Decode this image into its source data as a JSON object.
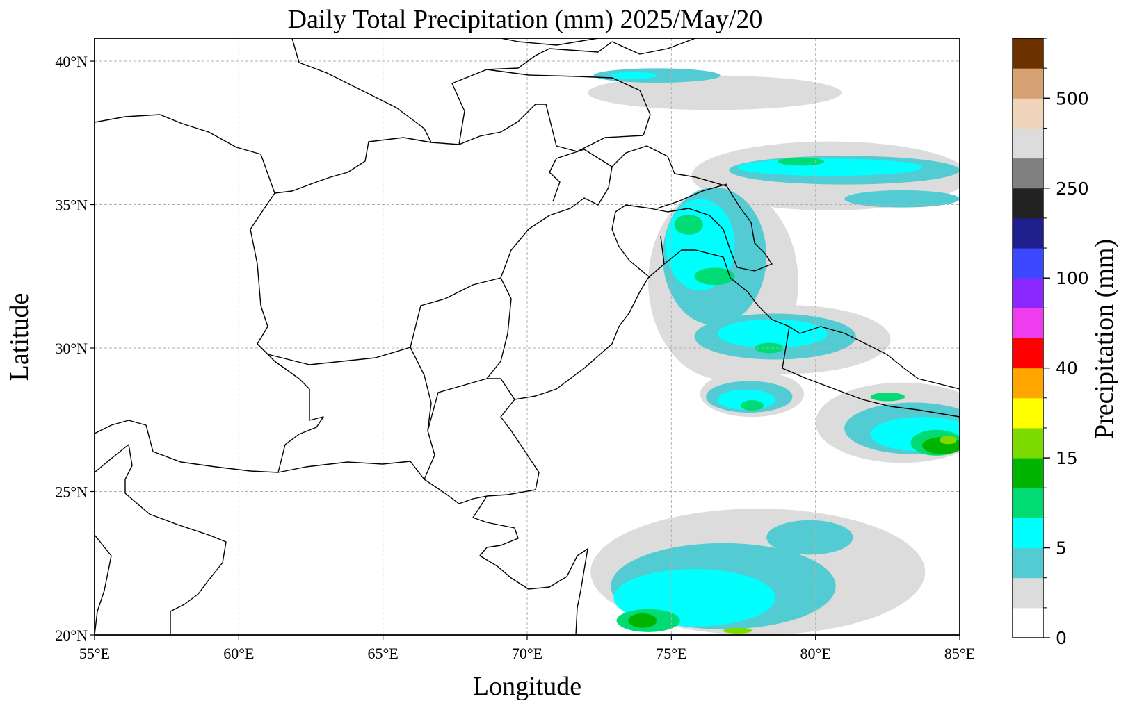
{
  "title": "Daily Total Precipitation (mm)  2025/May/20",
  "xlabel": "Longitude",
  "ylabel": "Latitude",
  "colorbar_label": "Precipitation (mm)",
  "lon_range": [
    55,
    85
  ],
  "lat_range": [
    20,
    40.8
  ],
  "x_ticks": [
    {
      "value": 55,
      "label": "55°E"
    },
    {
      "value": 60,
      "label": "60°E"
    },
    {
      "value": 65,
      "label": "65°E"
    },
    {
      "value": 70,
      "label": "70°E"
    },
    {
      "value": 75,
      "label": "75°E"
    },
    {
      "value": 80,
      "label": "80°E"
    },
    {
      "value": 85,
      "label": "85°E"
    }
  ],
  "y_ticks": [
    {
      "value": 20,
      "label": "20°N"
    },
    {
      "value": 25,
      "label": "25°N"
    },
    {
      "value": 30,
      "label": "30°N"
    },
    {
      "value": 35,
      "label": "35°N"
    },
    {
      "value": 40,
      "label": "40°N"
    }
  ],
  "colorbar_colors": [
    "#ffffff",
    "#dcdcdc",
    "#52ccd2",
    "#00ffff",
    "#00db74",
    "#00b400",
    "#7ddb00",
    "#ffff00",
    "#ffa500",
    "#ff0000",
    "#ef3cef",
    "#8a28ff",
    "#3c48ff",
    "#1e1e8c",
    "#222222",
    "#808080",
    "#dcdcdc",
    "#f0d4bc",
    "#d6a274",
    "#6b3200"
  ],
  "colorbar_tick_labels": [
    {
      "index": 0,
      "label": "0"
    },
    {
      "index": 3,
      "label": "5"
    },
    {
      "index": 6,
      "label": "15"
    },
    {
      "index": 9,
      "label": "40"
    },
    {
      "index": 12,
      "label": "100"
    },
    {
      "index": 15,
      "label": "250"
    },
    {
      "index": 18,
      "label": "500"
    }
  ],
  "precip_levels": [
    "#dcdcdc",
    "#52ccd2",
    "#00ffff",
    "#00db74",
    "#00b400",
    "#7ddb00",
    "#ffff00"
  ],
  "precip_regions": [
    {
      "level": 0,
      "lon": 76.5,
      "lat": 38.9,
      "rx": 4.4,
      "ry": 0.6
    },
    {
      "level": 1,
      "lon": 74.5,
      "lat": 39.5,
      "rx": 2.2,
      "ry": 0.25
    },
    {
      "level": 2,
      "lon": 73.7,
      "lat": 39.5,
      "rx": 0.8,
      "ry": 0.12
    },
    {
      "level": 0,
      "lon": 80.5,
      "lat": 36.0,
      "rx": 4.8,
      "ry": 1.2
    },
    {
      "level": 1,
      "lon": 81.0,
      "lat": 36.2,
      "rx": 4.0,
      "ry": 0.5
    },
    {
      "level": 2,
      "lon": 80.5,
      "lat": 36.3,
      "rx": 3.2,
      "ry": 0.3
    },
    {
      "level": 3,
      "lon": 79.5,
      "lat": 36.5,
      "rx": 0.8,
      "ry": 0.14
    },
    {
      "level": 1,
      "lon": 83.0,
      "lat": 35.2,
      "rx": 2.0,
      "ry": 0.3
    },
    {
      "level": 0,
      "lon": 76.8,
      "lat": 32.3,
      "rx": 2.6,
      "ry": 3.4
    },
    {
      "level": 1,
      "lon": 76.5,
      "lat": 33.2,
      "rx": 1.8,
      "ry": 2.4
    },
    {
      "level": 2,
      "lon": 76.0,
      "lat": 33.6,
      "rx": 1.2,
      "ry": 1.6
    },
    {
      "level": 3,
      "lon": 75.6,
      "lat": 34.3,
      "rx": 0.5,
      "ry": 0.35
    },
    {
      "level": 3,
      "lon": 76.5,
      "lat": 32.5,
      "rx": 0.7,
      "ry": 0.3
    },
    {
      "level": 0,
      "lon": 79.0,
      "lat": 30.3,
      "rx": 3.6,
      "ry": 1.2
    },
    {
      "level": 1,
      "lon": 78.6,
      "lat": 30.4,
      "rx": 2.8,
      "ry": 0.8
    },
    {
      "level": 2,
      "lon": 78.5,
      "lat": 30.5,
      "rx": 1.9,
      "ry": 0.5
    },
    {
      "level": 3,
      "lon": 78.4,
      "lat": 30.0,
      "rx": 0.5,
      "ry": 0.18
    },
    {
      "level": 0,
      "lon": 77.8,
      "lat": 28.4,
      "rx": 1.8,
      "ry": 0.8
    },
    {
      "level": 1,
      "lon": 77.7,
      "lat": 28.3,
      "rx": 1.5,
      "ry": 0.55
    },
    {
      "level": 2,
      "lon": 77.6,
      "lat": 28.2,
      "rx": 1.0,
      "ry": 0.35
    },
    {
      "level": 3,
      "lon": 77.8,
      "lat": 28.0,
      "rx": 0.4,
      "ry": 0.18
    },
    {
      "level": 0,
      "lon": 83.0,
      "lat": 27.4,
      "rx": 3.0,
      "ry": 1.4
    },
    {
      "level": 1,
      "lon": 83.4,
      "lat": 27.2,
      "rx": 2.4,
      "ry": 0.9
    },
    {
      "level": 2,
      "lon": 83.7,
      "lat": 27.0,
      "rx": 1.8,
      "ry": 0.6
    },
    {
      "level": 3,
      "lon": 84.2,
      "lat": 26.7,
      "rx": 0.9,
      "ry": 0.45
    },
    {
      "level": 4,
      "lon": 84.4,
      "lat": 26.6,
      "rx": 0.7,
      "ry": 0.3
    },
    {
      "level": 5,
      "lon": 84.6,
      "lat": 26.8,
      "rx": 0.3,
      "ry": 0.15
    },
    {
      "level": 3,
      "lon": 82.5,
      "lat": 28.3,
      "rx": 0.6,
      "ry": 0.15
    },
    {
      "level": 0,
      "lon": 78.0,
      "lat": 22.2,
      "rx": 5.8,
      "ry": 2.2
    },
    {
      "level": 1,
      "lon": 76.8,
      "lat": 21.7,
      "rx": 3.9,
      "ry": 1.5
    },
    {
      "level": 2,
      "lon": 75.8,
      "lat": 21.3,
      "rx": 2.8,
      "ry": 1.0
    },
    {
      "level": 1,
      "lon": 79.8,
      "lat": 23.4,
      "rx": 1.5,
      "ry": 0.6
    },
    {
      "level": 3,
      "lon": 74.2,
      "lat": 20.5,
      "rx": 1.1,
      "ry": 0.4
    },
    {
      "level": 4,
      "lon": 74.0,
      "lat": 20.5,
      "rx": 0.5,
      "ry": 0.25
    },
    {
      "level": 5,
      "lon": 77.3,
      "lat": 20.15,
      "rx": 0.5,
      "ry": 0.1
    }
  ]
}
